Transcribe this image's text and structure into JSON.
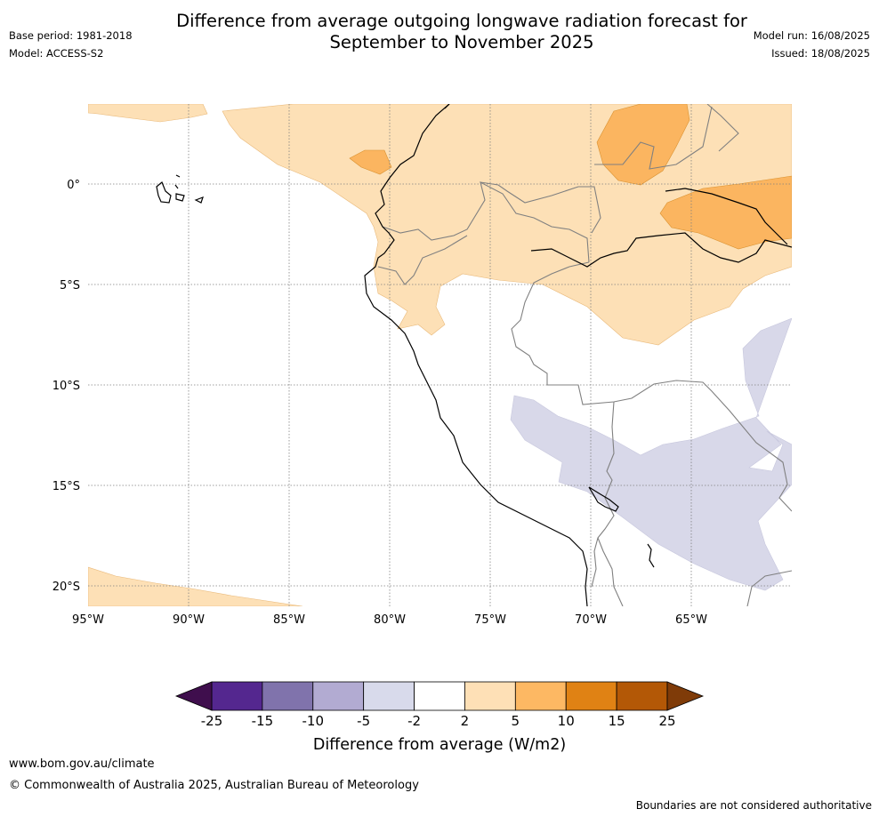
{
  "header": {
    "title_line1": "Difference from average outgoing longwave radiation forecast for",
    "title_line2": "September to November 2025",
    "base_period": "Base period: 1981-2018",
    "model": "Model: ACCESS-S2",
    "model_run": "Model run: 16/08/2025",
    "issued": "Issued: 18/08/2025"
  },
  "map": {
    "lat_labels": [
      "0°",
      "5°S",
      "10°S",
      "15°S",
      "20°S"
    ],
    "lon_labels": [
      "95°W",
      "90°W",
      "85°W",
      "80°W",
      "75°W",
      "70°W",
      "65°W"
    ],
    "colors": {
      "light_orange": "#fde0b6",
      "orange": "#fbb560",
      "light_purple": "#d8d8e9",
      "coast": "#000000",
      "border": "#808080",
      "grid": "#808080"
    }
  },
  "colorbar": {
    "title": "Difference from average (W/m2)",
    "ticks": [
      "-25",
      "-15",
      "-10",
      "-5",
      "-2",
      "2",
      "5",
      "10",
      "15",
      "25"
    ],
    "colors": [
      "#3f0e4d",
      "#54278f",
      "#8073ac",
      "#b2abd2",
      "#d8daeb",
      "#ffffff",
      "#fee0b6",
      "#fdb863",
      "#e08214",
      "#b35806",
      "#7f3b08"
    ]
  },
  "footer": {
    "url": "www.bom.gov.au/climate",
    "copyright": "© Commonwealth of Australia 2025, Australian Bureau of Meteorology",
    "boundaries": "Boundaries are not considered authoritative"
  }
}
